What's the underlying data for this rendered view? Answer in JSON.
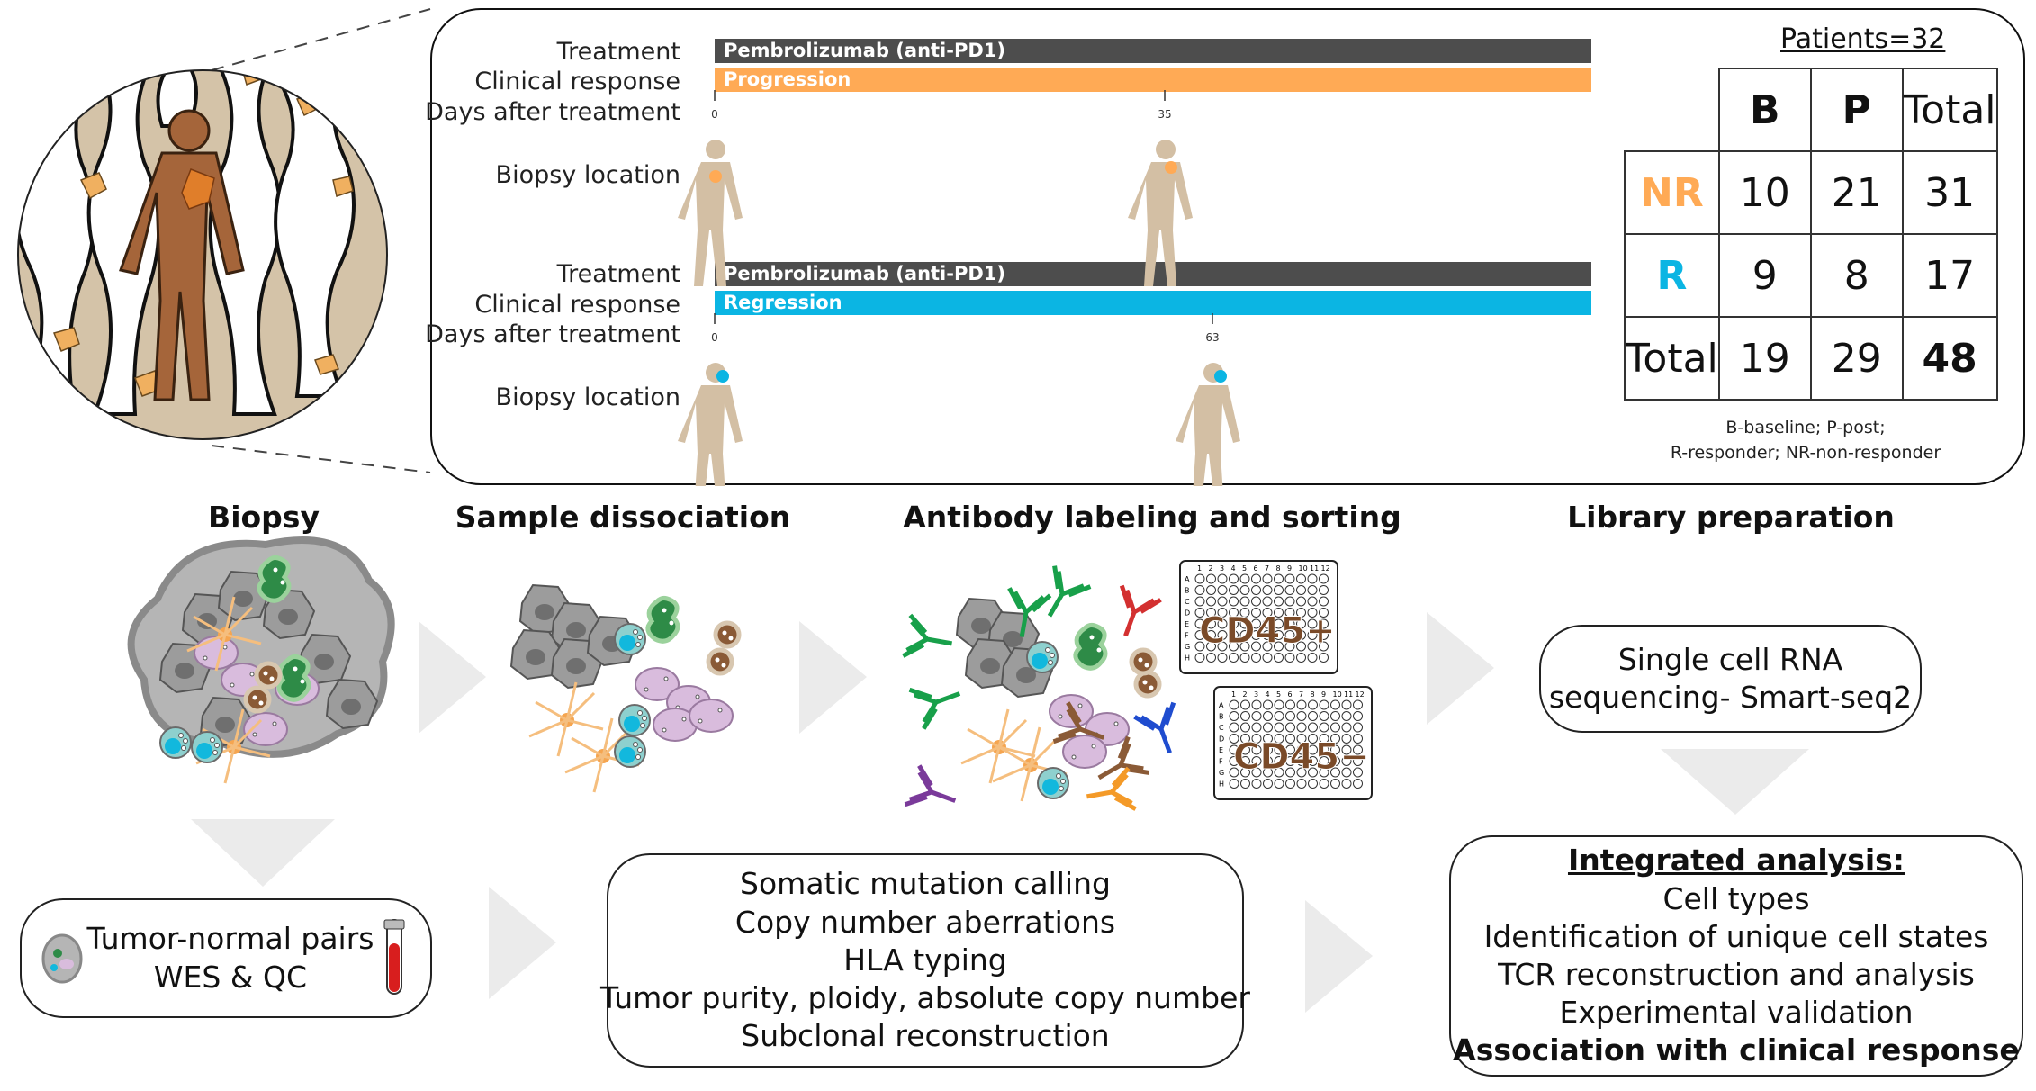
{
  "panel": {
    "patients_label": "Patients=32",
    "cases": [
      {
        "treatment_label": "Treatment",
        "response_label": "Clinical response",
        "days_label": "Days after treatment",
        "biopsy_label": "Biopsy location",
        "treatment_bar": "Pembrolizumab (anti-PD1)",
        "response_bar": "Progression",
        "response_color": "#FFAA55",
        "tick_start": "0",
        "tick_end": "35"
      },
      {
        "treatment_label": "Treatment",
        "response_label": "Clinical response",
        "days_label": "Days after treatment",
        "biopsy_label": "Biopsy location",
        "treatment_bar": "Pembrolizumab (anti-PD1)",
        "response_bar": "Regression",
        "response_color": "#0BB5E3",
        "tick_start": "0",
        "tick_end": "63"
      }
    ],
    "table": {
      "headers": [
        "",
        "B",
        "P",
        "Total"
      ],
      "rows": [
        {
          "label": "NR",
          "values": [
            "10",
            "21",
            "31"
          ]
        },
        {
          "label": "R",
          "values": [
            "9",
            "8",
            "17"
          ]
        },
        {
          "label": "Total",
          "values": [
            "19",
            "29",
            "48"
          ]
        }
      ],
      "legend_line1": "B-baseline; P-post;",
      "legend_line2": "R-responder; NR-non-responder"
    }
  },
  "steps": {
    "biopsy": "Biopsy",
    "dissociation": "Sample dissociation",
    "labeling": "Antibody labeling and sorting",
    "library": "Library preparation"
  },
  "plates": {
    "label": "CD45",
    "plus": "+",
    "minus": "−",
    "cols": "1 2 3 4 5 6 7 8 9 10 11 12",
    "rows": [
      "A",
      "B",
      "C",
      "D",
      "E",
      "F",
      "G",
      "H"
    ]
  },
  "sequencing": {
    "line1": "Single cell RNA",
    "line2": "sequencing- Smart-seq2"
  },
  "wes": {
    "line1": "Tumor-normal pairs",
    "line2": "WES & QC"
  },
  "genomics": {
    "lines": [
      "Somatic mutation calling",
      "Copy number aberrations",
      "HLA typing",
      "Tumor purity, ploidy, absolute copy number",
      "Subclonal reconstruction"
    ]
  },
  "integrated": {
    "title": "Integrated analysis:",
    "lines": [
      "Cell types",
      "Identification of unique cell states",
      "TCR reconstruction and analysis",
      "Experimental validation"
    ],
    "final": "Association with clinical response"
  },
  "colors": {
    "orange": "#FFAA55",
    "cyan": "#0BB5E3",
    "dark_bar": "#4D4D4D",
    "skin": "#D3BFA4",
    "brown": "#7A4A28",
    "arrow": "#EBEBEB"
  }
}
